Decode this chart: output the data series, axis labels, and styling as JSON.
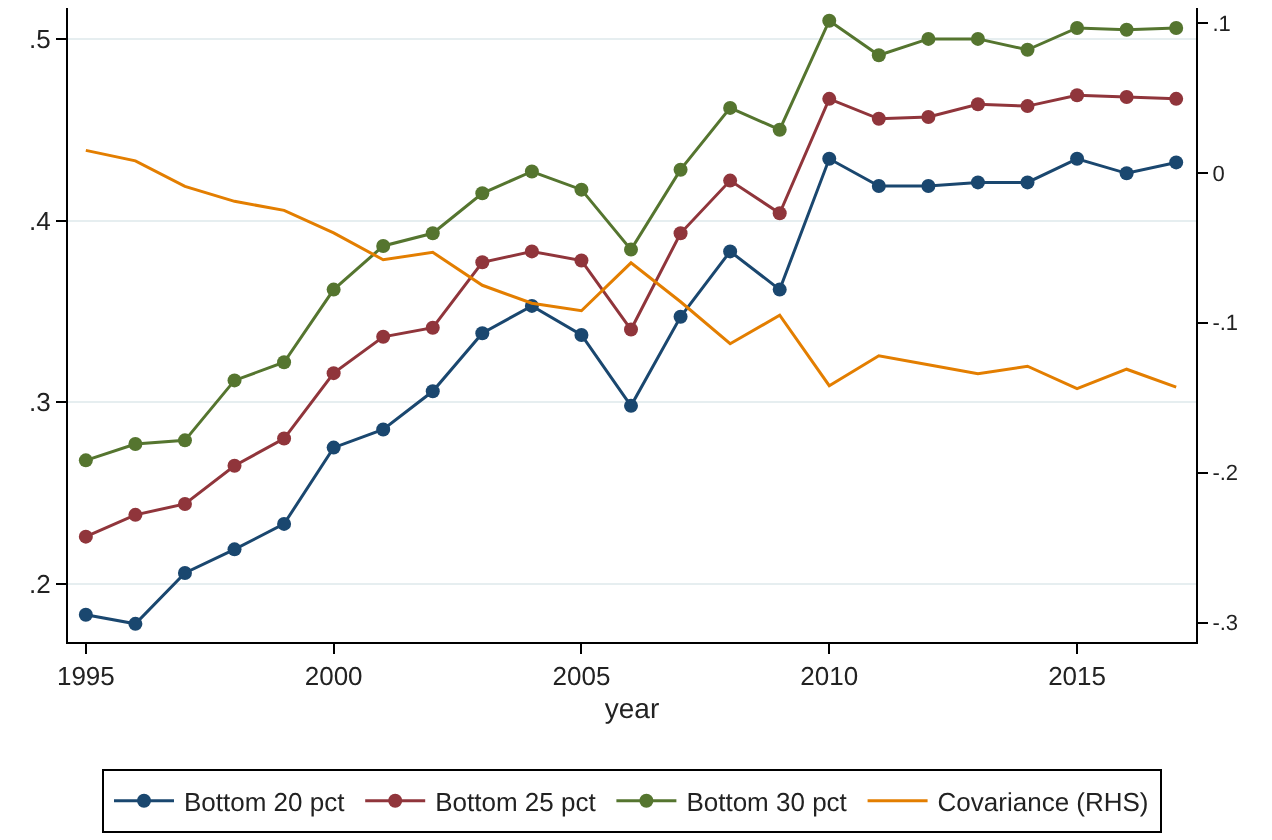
{
  "chart_data": {
    "type": "line",
    "xlabel": "year",
    "x": [
      1995,
      1996,
      1997,
      1998,
      1999,
      2000,
      2001,
      2002,
      2003,
      2004,
      2005,
      2006,
      2007,
      2008,
      2009,
      2010,
      2011,
      2012,
      2013,
      2014,
      2015,
      2016,
      2017
    ],
    "series": [
      {
        "name": "Bottom 20 pct",
        "color": "#1a476f",
        "marker": "circle",
        "values": [
          0.183,
          0.178,
          0.206,
          0.219,
          0.233,
          0.275,
          0.285,
          0.306,
          0.338,
          0.353,
          0.337,
          0.298,
          0.347,
          0.383,
          0.362,
          0.434,
          0.419,
          0.419,
          0.421,
          0.421,
          0.434,
          0.426,
          0.432
        ]
      },
      {
        "name": "Bottom 25 pct",
        "color": "#90353b",
        "marker": "circle",
        "values": [
          0.226,
          0.238,
          0.244,
          0.265,
          0.28,
          0.316,
          0.336,
          0.341,
          0.377,
          0.383,
          0.378,
          0.34,
          0.393,
          0.422,
          0.404,
          0.467,
          0.456,
          0.457,
          0.464,
          0.463,
          0.469,
          0.468,
          0.467
        ]
      },
      {
        "name": "Bottom 30 pct",
        "color": "#55752f",
        "marker": "circle",
        "values": [
          0.268,
          0.277,
          0.279,
          0.312,
          0.322,
          0.362,
          0.386,
          0.393,
          0.415,
          0.427,
          0.417,
          0.384,
          0.428,
          0.462,
          0.45,
          0.51,
          0.491,
          0.5,
          0.5,
          0.494,
          0.506,
          0.505,
          0.506
        ]
      },
      {
        "name": "Covariance (RHS)",
        "color": "#e37e00",
        "marker": "none",
        "axis": "y2",
        "values": [
          0.015,
          0.008,
          -0.009,
          -0.019,
          -0.025,
          -0.04,
          -0.058,
          -0.053,
          -0.075,
          -0.087,
          -0.092,
          -0.06,
          -0.086,
          -0.114,
          -0.095,
          -0.142,
          -0.122,
          -0.128,
          -0.134,
          -0.129,
          -0.144,
          -0.131,
          -0.143
        ]
      }
    ],
    "xlim": [
      1994.64,
      2017.4
    ],
    "xticks": [
      1995,
      2000,
      2005,
      2010,
      2015
    ],
    "ylim": [
      0.168,
      0.517
    ],
    "yticks": [
      {
        "value": 0.2,
        "label": ".2"
      },
      {
        "value": 0.3,
        "label": ".3"
      },
      {
        "value": 0.4,
        "label": ".4"
      },
      {
        "value": 0.5,
        "label": ".5"
      }
    ],
    "y2lim": [
      -0.313,
      0.11
    ],
    "y2ticks": [
      {
        "value": -0.3,
        "label": "-.3"
      },
      {
        "value": -0.2,
        "label": "-.2"
      },
      {
        "value": -0.1,
        "label": "-.1"
      },
      0,
      {
        "value": 0.1,
        "label": ".1"
      }
    ],
    "grid": "y",
    "legend": "bottom",
    "line_style": "solid"
  }
}
